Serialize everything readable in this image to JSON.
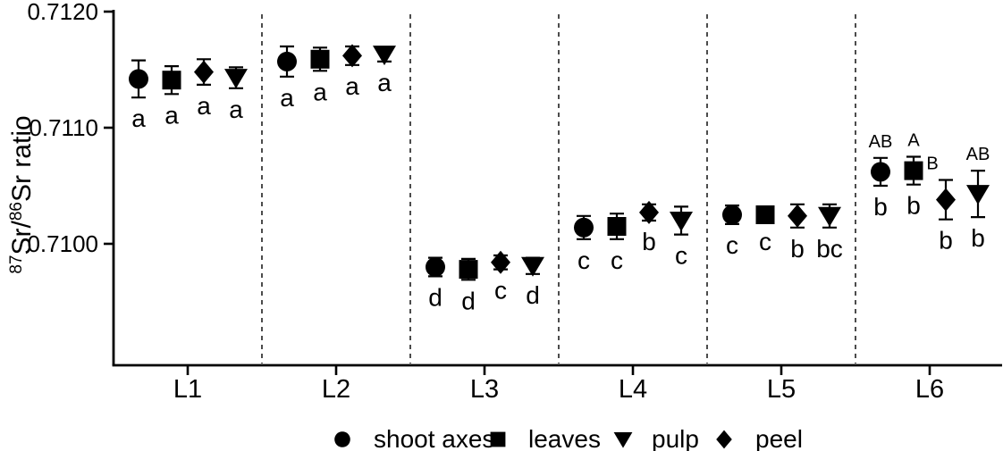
{
  "figure": {
    "background_color": "#ffffff",
    "ink_color": "#000000"
  },
  "chart_data": {
    "type": "scatter",
    "title": "",
    "ylabel": "87Sr/86Sr ratio",
    "ylabel_parts": [
      {
        "text": "87",
        "sup": true
      },
      {
        "text": "Sr/",
        "sup": false
      },
      {
        "text": "86",
        "sup": true
      },
      {
        "text": "Sr ratio",
        "sup": false
      }
    ],
    "y_tick_labels": [
      "0.7120",
      "0.7110",
      "0.7100"
    ],
    "y_tick_values": [
      0.712,
      0.711,
      0.71
    ],
    "ylim": [
      0.70895,
      0.71205
    ],
    "grid": "none",
    "group_separator_style": "vertical-dashed",
    "legend_position": "bottom",
    "categories": [
      "L1",
      "L2",
      "L3",
      "L4",
      "L5",
      "L6"
    ],
    "series": [
      {
        "name": "shoot axes",
        "marker": "circle",
        "values": [
          0.71142,
          0.71157,
          0.7098,
          0.71014,
          0.71025,
          0.71062
        ],
        "errors": [
          0.00016,
          0.00013,
          8e-05,
          0.0001,
          8e-05,
          0.00012
        ],
        "letters_below": [
          "a",
          "a",
          "d",
          "c",
          "c",
          "b"
        ],
        "letters_above": [
          "",
          "",
          "",
          "",
          "",
          "AB"
        ]
      },
      {
        "name": "leaves",
        "marker": "square",
        "values": [
          0.71141,
          0.71159,
          0.70978,
          0.71015,
          0.71025,
          0.71063
        ],
        "errors": [
          0.00012,
          0.0001,
          9e-05,
          0.00011,
          5e-05,
          0.00012
        ],
        "letters_below": [
          "a",
          "a",
          "d",
          "c",
          "c",
          "b"
        ],
        "letters_above": [
          "",
          "",
          "",
          "",
          "",
          "A"
        ]
      },
      {
        "name": "peel",
        "marker": "diamond",
        "values": [
          0.71148,
          0.71162,
          0.70984,
          0.71027,
          0.71024,
          0.71038
        ],
        "errors": [
          0.00011,
          8e-05,
          6e-05,
          7e-05,
          0.0001,
          0.00017
        ],
        "letters_below": [
          "a",
          "a",
          "c",
          "b",
          "b",
          "b"
        ],
        "letters_above": [
          "",
          "",
          "",
          "",
          "",
          "B"
        ],
        "letters_above_dx": [
          0,
          0,
          0,
          0,
          0,
          -15
        ]
      },
      {
        "name": "pulp",
        "marker": "triangle-down",
        "values": [
          0.71143,
          0.71163,
          0.70981,
          0.7102,
          0.71024,
          0.71043
        ],
        "errors": [
          9e-05,
          6e-05,
          7e-05,
          0.00012,
          0.0001,
          0.0002
        ],
        "letters_below": [
          "a",
          "a",
          "d",
          "c",
          "bc",
          "b"
        ],
        "letters_above": [
          "",
          "",
          "",
          "",
          "",
          "AB"
        ]
      }
    ],
    "legend": [
      {
        "label": "shoot axes",
        "marker": "circle"
      },
      {
        "label": "leaves",
        "marker": "square"
      },
      {
        "label": "pulp",
        "marker": "triangle-down"
      },
      {
        "label": "peel",
        "marker": "diamond"
      }
    ]
  }
}
